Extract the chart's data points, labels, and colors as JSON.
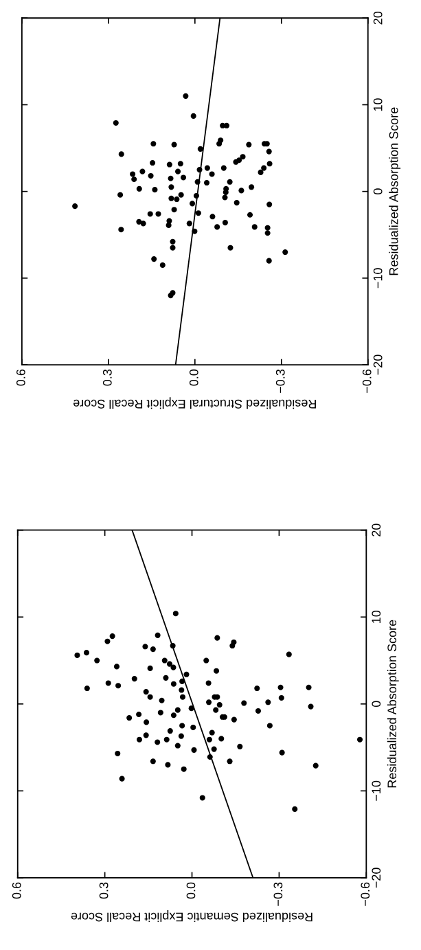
{
  "chart_data": [
    {
      "type": "scatter",
      "xlabel": "Residualized Structural Explicit Recall Score",
      "ylabel": "Residualized Absorption Score",
      "xlim": [
        0.6,
        -0.6
      ],
      "xticks": [
        {
          "value": 0.6,
          "label": "0.6"
        },
        {
          "value": 0.3,
          "label": "0.3"
        },
        {
          "value": 0.0,
          "label": "0.0"
        },
        {
          "value": -0.3,
          "label": "−0.3"
        },
        {
          "value": -0.6,
          "label": "−0.6"
        }
      ],
      "ylim": [
        -20,
        20
      ],
      "yticks": [
        -20,
        -10,
        0,
        10,
        20
      ],
      "grid": false,
      "legend": false,
      "series": [
        {
          "type": "scatter",
          "color": "#000000",
          "marker": "circle",
          "x": [
            0.416,
            0.274,
            0.259,
            0.255,
            0.256,
            0.216,
            0.211,
            0.193,
            0.182,
            0.194,
            0.179,
            0.155,
            0.153,
            0.147,
            0.144,
            0.139,
            0.127,
            0.142,
            0.112,
            0.091,
            0.089,
            0.088,
            0.084,
            0.082,
            0.082,
            0.077,
            0.077,
            0.084,
            0.077,
            0.072,
            0.072,
            0.063,
            0.059,
            0.05,
            0.048,
            0.04,
            0.032,
            0.019,
            0.009,
            0.005,
            0.001,
            -0.005,
            -0.009,
            -0.012,
            -0.016,
            -0.019,
            -0.043,
            -0.041,
            -0.059,
            -0.061,
            -0.077,
            -0.084,
            -0.089,
            -0.1,
            -0.096,
            -0.11,
            -0.104,
            -0.107,
            -0.108,
            -0.105,
            -0.121,
            -0.123,
            -0.145,
            -0.142,
            -0.153,
            -0.166,
            -0.161,
            -0.187,
            -0.191,
            -0.196,
            -0.207,
            -0.228,
            -0.239,
            -0.241,
            -0.25,
            -0.257,
            -0.259,
            -0.258,
            -0.252,
            -0.252,
            -0.257,
            -0.313
          ],
          "values": [
            -1.7,
            7.9,
            -0.4,
            4.3,
            -4.4,
            2.0,
            1.4,
            0.3,
            2.3,
            -3.5,
            -3.7,
            -2.6,
            1.8,
            3.3,
            5.5,
            0.2,
            -2.6,
            -7.8,
            -8.5,
            -3.9,
            -3.4,
            3.1,
            1.5,
            0.5,
            -0.8,
            -5.8,
            -6.5,
            -12.0,
            -11.7,
            -2.1,
            5.4,
            -0.9,
            2.3,
            3.2,
            -0.4,
            1.6,
            11.0,
            -3.7,
            -1.4,
            8.7,
            -4.6,
            -0.5,
            1.1,
            -2.5,
            2.5,
            4.9,
            2.7,
            1.0,
            2.0,
            -2.9,
            -4.1,
            5.5,
            5.9,
            2.7,
            7.6,
            7.6,
            -0.7,
            -0.1,
            0.3,
            -3.6,
            1.1,
            -6.5,
            -1.3,
            3.4,
            3.6,
            4.0,
            0.1,
            5.4,
            -2.7,
            0.5,
            -4.1,
            2.2,
            2.7,
            5.5,
            5.5,
            4.6,
            3.2,
            -1.5,
            -4.2,
            -4.8,
            -8.0,
            -7.0
          ]
        },
        {
          "type": "line",
          "color": "#000000",
          "marker": "none",
          "line_style": "solid",
          "x": [
            0.067,
            -0.087
          ],
          "values": [
            -20,
            20
          ]
        }
      ]
    },
    {
      "type": "scatter",
      "xlabel": "Residualized Semantic Explicit Recall Score",
      "ylabel": "Residualized Absorption Score",
      "xlim": [
        0.6,
        -0.6
      ],
      "xticks": [
        {
          "value": 0.6,
          "label": "0.6"
        },
        {
          "value": 0.3,
          "label": "0.3"
        },
        {
          "value": 0.0,
          "label": "0.0"
        },
        {
          "value": -0.3,
          "label": "−0.3"
        },
        {
          "value": -0.6,
          "label": "−0.6"
        }
      ],
      "ylim": [
        -20,
        20
      ],
      "yticks": [
        -20,
        -10,
        0,
        10,
        20
      ],
      "grid": false,
      "legend": false,
      "series": [
        {
          "type": "scatter",
          "color": "#000000",
          "marker": "circle",
          "x": [
            0.395,
            0.363,
            0.361,
            0.327,
            0.291,
            0.274,
            0.288,
            0.259,
            0.254,
            0.256,
            0.241,
            0.216,
            0.198,
            0.183,
            0.181,
            0.161,
            0.157,
            0.158,
            0.158,
            0.144,
            0.144,
            0.134,
            0.134,
            0.119,
            0.118,
            0.108,
            0.104,
            0.09,
            0.094,
            0.087,
            0.083,
            0.077,
            0.075,
            0.066,
            0.064,
            0.063,
            0.063,
            0.056,
            0.049,
            0.049,
            0.037,
            0.036,
            0.034,
            0.032,
            0.034,
            0.028,
            0.019,
            0.002,
            -0.004,
            -0.007,
            -0.036,
            -0.049,
            -0.057,
            -0.058,
            -0.06,
            -0.069,
            -0.062,
            -0.076,
            -0.078,
            -0.082,
            -0.084,
            -0.087,
            -0.087,
            -0.095,
            -0.101,
            -0.105,
            -0.112,
            -0.13,
            -0.139,
            -0.144,
            -0.145,
            -0.165,
            -0.179,
            -0.224,
            -0.228,
            -0.262,
            -0.268,
            -0.305,
            -0.308,
            -0.31,
            -0.334,
            -0.354,
            -0.402,
            -0.409,
            -0.426,
            -0.578
          ],
          "values": [
            5.6,
            5.9,
            1.8,
            5.0,
            7.2,
            7.8,
            2.4,
            4.3,
            2.1,
            -5.7,
            -8.6,
            -1.6,
            2.9,
            -1.2,
            -4.1,
            6.6,
            -2.1,
            -3.6,
            1.4,
            0.8,
            4.1,
            6.3,
            -6.6,
            -4.4,
            7.9,
            -1.0,
            0.4,
            3.0,
            5.0,
            -4.1,
            -7.0,
            4.6,
            -3.1,
            6.7,
            4.2,
            2.3,
            -1.3,
            10.4,
            -0.7,
            -4.8,
            -3.7,
            1.6,
            2.6,
            0.8,
            -2.5,
            -7.5,
            3.4,
            -0.5,
            -2.7,
            -5.3,
            -10.8,
            5.0,
            2.4,
            0.2,
            -4.1,
            -3.3,
            -6.1,
            -5.2,
            0.8,
            -0.7,
            3.8,
            7.6,
            0.8,
            -0.1,
            -4.0,
            -1.5,
            -1.5,
            -6.6,
            6.7,
            7.1,
            -1.8,
            -4.9,
            0.1,
            1.8,
            -0.8,
            0.2,
            -2.5,
            1.9,
            0.7,
            -5.6,
            5.7,
            -12.1,
            1.9,
            -0.3,
            -7.1,
            -4.1
          ]
        },
        {
          "type": "line",
          "color": "#000000",
          "marker": "none",
          "line_style": "solid",
          "x": [
            -0.21,
            0.206
          ],
          "values": [
            -20,
            20
          ]
        }
      ]
    }
  ]
}
